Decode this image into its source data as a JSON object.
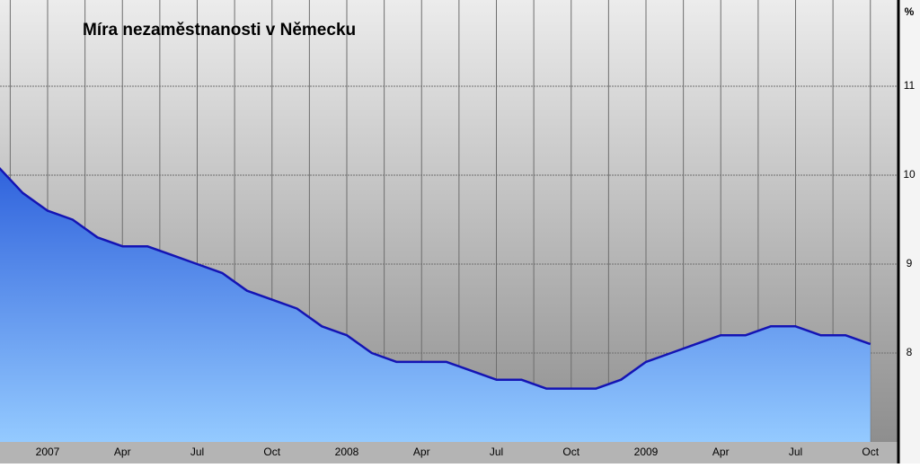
{
  "chart_data": {
    "type": "area",
    "title": "Míra nezaměstnanosti v Německu",
    "y_label": "%",
    "categories": [
      null,
      null,
      "2007",
      null,
      null,
      "Apr",
      null,
      null,
      "Jul",
      null,
      null,
      "Oct",
      null,
      null,
      "2008",
      null,
      null,
      "Apr",
      null,
      null,
      "Jul",
      null,
      null,
      "Oct",
      null,
      null,
      "2009",
      null,
      null,
      "Apr",
      null,
      null,
      "Jul",
      null,
      null,
      "Oct"
    ],
    "series": [
      {
        "name": "Míra nezaměstnanosti",
        "color": "#1414b4",
        "values": [
          10.1,
          9.8,
          9.6,
          9.5,
          9.3,
          9.2,
          9.2,
          9.1,
          9.0,
          8.9,
          8.7,
          8.6,
          8.5,
          8.3,
          8.2,
          8.0,
          7.9,
          7.9,
          7.9,
          7.8,
          7.7,
          7.7,
          7.6,
          7.6,
          7.6,
          7.7,
          7.9,
          8.0,
          8.1,
          8.2,
          8.2,
          8.3,
          8.3,
          8.2,
          8.2,
          8.1
        ]
      }
    ],
    "ylim": [
      7,
      12
    ],
    "yticks": [
      8,
      9,
      10,
      11
    ],
    "grid": true
  }
}
